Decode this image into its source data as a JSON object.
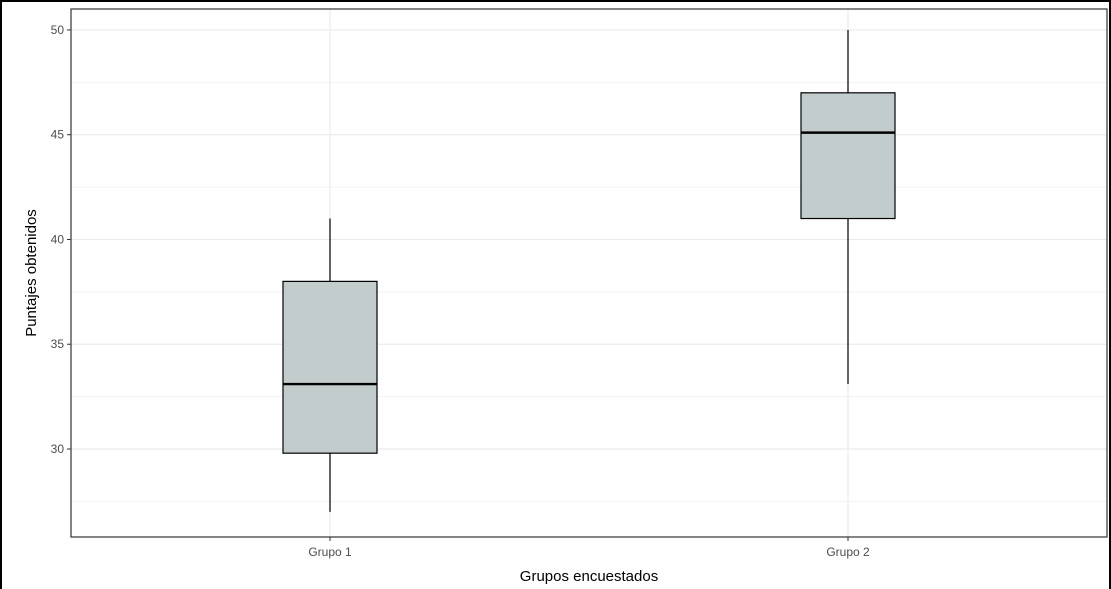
{
  "chart_data": {
    "type": "boxplot",
    "categories": [
      "Grupo 1",
      "Grupo 2"
    ],
    "boxes": [
      {
        "category": "Grupo 1",
        "min": 27,
        "q1": 29.8,
        "median": 33.1,
        "q3": 38,
        "max": 41
      },
      {
        "category": "Grupo 2",
        "min": 33.1,
        "q1": 41,
        "median": 45.1,
        "q3": 47,
        "max": 50
      }
    ],
    "xlabel": "Grupos encuestados",
    "ylabel": "Puntajes obtenidos",
    "ylim": [
      25.8,
      51.0
    ],
    "yticks": [
      30,
      35,
      40,
      45,
      50
    ],
    "ytick_labels": [
      "30",
      "35",
      "40",
      "45",
      "50"
    ],
    "grid": true,
    "colors": {
      "box_fill": "#c2cccc",
      "box_stroke": "#000000",
      "grid_major": "#ebebeb",
      "grid_minor": "#f2f2f2",
      "panel_border": "#333333"
    }
  }
}
